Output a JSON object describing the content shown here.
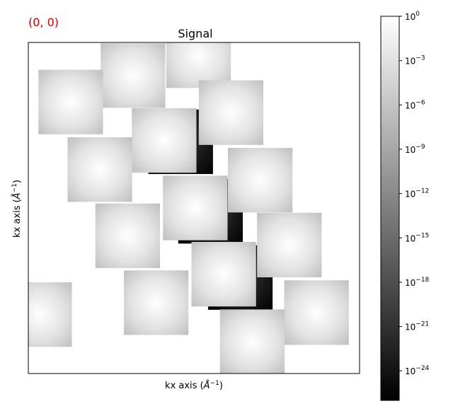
{
  "coord_readout": "(0, 0)",
  "colors": {
    "coord_text": "#dd0000",
    "axes": "#000000",
    "background": "#ffffff"
  },
  "chart_data": {
    "type": "heatmap",
    "title": "Signal",
    "xlabel": "kx axis",
    "ylabel": "kx axis",
    "unit_base": "Å",
    "unit_exp": "−1",
    "colormap": "gray",
    "scale": "log",
    "colorbar": {
      "range_exponents": [
        -26,
        0
      ],
      "ticks": [
        {
          "exp": 0,
          "base": "10",
          "power": "0"
        },
        {
          "exp": -3,
          "base": "10",
          "power": "−3"
        },
        {
          "exp": -6,
          "base": "10",
          "power": "−6"
        },
        {
          "exp": -9,
          "base": "10",
          "power": "−9"
        },
        {
          "exp": -12,
          "base": "10",
          "power": "−12"
        },
        {
          "exp": -15,
          "base": "10",
          "power": "−15"
        },
        {
          "exp": -18,
          "base": "10",
          "power": "−18"
        },
        {
          "exp": -21,
          "base": "10",
          "power": "−21"
        },
        {
          "exp": -24,
          "base": "10",
          "power": "−24"
        }
      ]
    },
    "xlim": [
      0,
      1
    ],
    "ylim": [
      0,
      1
    ],
    "dark_patches": [
      {
        "cx": 0.46,
        "cy": 0.3,
        "size": 0.195
      },
      {
        "cx": 0.55,
        "cy": 0.51,
        "size": 0.195
      },
      {
        "cx": 0.64,
        "cy": 0.71,
        "size": 0.195
      }
    ],
    "disks": [
      {
        "cx": 0.316,
        "cy": 0.1,
        "size": 0.195
      },
      {
        "cx": 0.514,
        "cy": 0.04,
        "size": 0.195
      },
      {
        "cx": 0.128,
        "cy": 0.18,
        "size": 0.195
      },
      {
        "cx": 0.612,
        "cy": 0.212,
        "size": 0.195
      },
      {
        "cx": 0.41,
        "cy": 0.296,
        "size": 0.195
      },
      {
        "cx": 0.216,
        "cy": 0.384,
        "size": 0.195
      },
      {
        "cx": 0.7,
        "cy": 0.416,
        "size": 0.195
      },
      {
        "cx": 0.504,
        "cy": 0.5,
        "size": 0.195
      },
      {
        "cx": 0.3,
        "cy": 0.584,
        "size": 0.195
      },
      {
        "cx": 0.788,
        "cy": 0.612,
        "size": 0.195
      },
      {
        "cx": 0.59,
        "cy": 0.7,
        "size": 0.195
      },
      {
        "cx": 0.386,
        "cy": 0.786,
        "size": 0.195
      },
      {
        "cx": 0.87,
        "cy": 0.816,
        "size": 0.195
      },
      {
        "cx": 0.034,
        "cy": 0.822,
        "size": 0.195
      },
      {
        "cx": 0.676,
        "cy": 0.904,
        "size": 0.195
      }
    ]
  }
}
